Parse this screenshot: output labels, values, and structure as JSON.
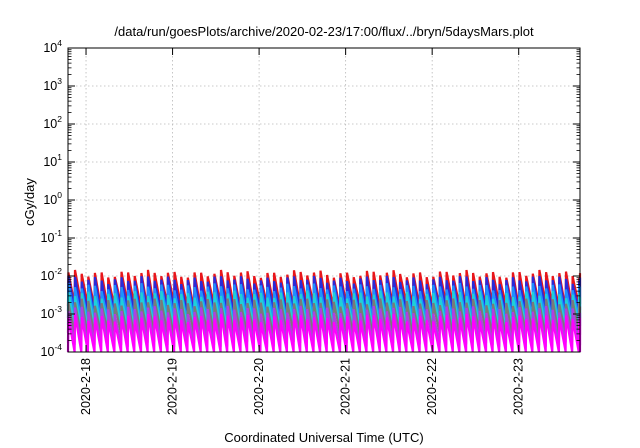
{
  "chart_data": {
    "type": "line",
    "title": "/data/run/goesPlots/archive/2020-02-23/17:00/flux/../bryn/5daysMars.plot",
    "xlabel": "Coordinated Universal Time (UTC)",
    "ylabel": "cGy/day",
    "y_scale": "log",
    "ylim": [
      0.0001,
      10000
    ],
    "y_ticks": [
      {
        "base": "10",
        "exp": "-4"
      },
      {
        "base": "10",
        "exp": "-3"
      },
      {
        "base": "10",
        "exp": "-2"
      },
      {
        "base": "10",
        "exp": "-1"
      },
      {
        "base": "10",
        "exp": "0"
      },
      {
        "base": "10",
        "exp": "1"
      },
      {
        "base": "10",
        "exp": "2"
      },
      {
        "base": "10",
        "exp": "3"
      },
      {
        "base": "10",
        "exp": "4"
      }
    ],
    "x_range": [
      "2020-02-17T19:00",
      "2020-02-23T17:00"
    ],
    "x_ticks": [
      "2020-2-18",
      "2020-2-19",
      "2020-2-20",
      "2020-2-21",
      "2020-2-22",
      "2020-2-23"
    ],
    "grid": true,
    "cycle_hours": 1.84,
    "series": [
      {
        "color": "#e8161b",
        "min": 0.0016,
        "max": 0.0115
      },
      {
        "color": "#2a2ad8",
        "min": 0.0011,
        "max": 0.0082
      },
      {
        "color": "#1e90ff",
        "min": 0.0007,
        "max": 0.0052
      },
      {
        "color": "#1fd0d8",
        "min": 0.00045,
        "max": 0.0033
      },
      {
        "color": "#7a7a7a",
        "min": 0.00028,
        "max": 0.0021
      },
      {
        "color": "#b040e0",
        "min": 0.00016,
        "max": 0.0013
      },
      {
        "color": "#ff00ff",
        "min": 9e-05,
        "max": 0.0008
      }
    ]
  }
}
